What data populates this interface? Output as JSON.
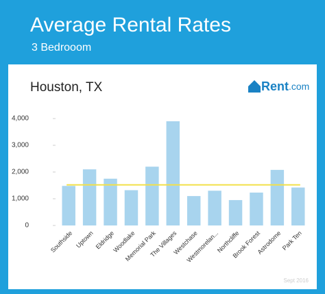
{
  "header": {
    "title": "Average Rental Rates",
    "subtitle": "3 Bedrooom"
  },
  "logo": {
    "main": "Rent",
    "suffix": ".com"
  },
  "chart_data": {
    "type": "bar",
    "title": "Houston, TX",
    "categories": [
      "Southside",
      "Uptown",
      "Eldridge",
      "Woodlake",
      "Memorial Park",
      "The Villages",
      "Westchase",
      "Westmorelan...",
      "Northcliffe",
      "Brook Forest",
      "Astrodome",
      "Park Ten"
    ],
    "values": [
      1480,
      2100,
      1750,
      1320,
      2200,
      3900,
      1100,
      1300,
      950,
      1230,
      2080,
      1420
    ],
    "color": "#a8d4ee",
    "average": 1520,
    "average_color": "#f2e04a",
    "ylim": [
      0,
      4000
    ],
    "yticks": [
      0,
      {
        "value": 1000,
        "label": "1,000"
      },
      {
        "value": 2000,
        "label": "2,000"
      },
      {
        "value": 3000,
        "label": "3,000"
      },
      {
        "value": 4000,
        "label": "4,000"
      }
    ],
    "grid": false,
    "note": "Sept 2016"
  }
}
